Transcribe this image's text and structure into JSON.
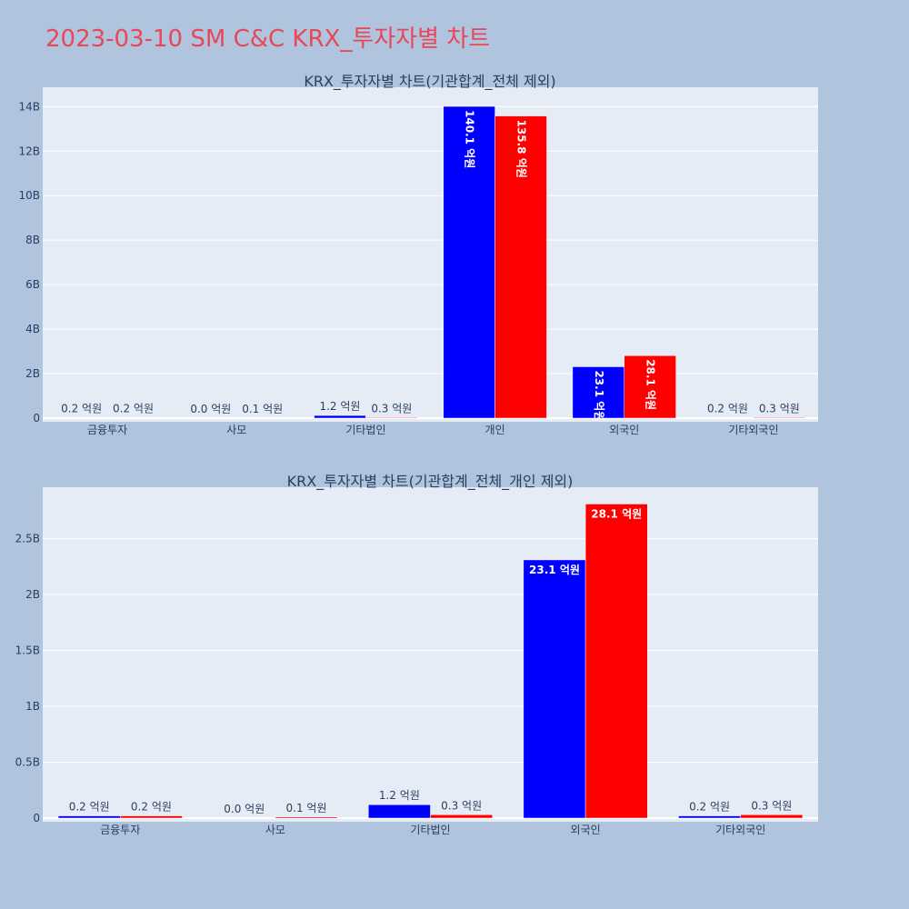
{
  "page": {
    "title": "2023-03-10 SM C&C KRX_투자자별 차트",
    "background": "#b0c4de",
    "title_color": "#e8475a"
  },
  "chart_data": [
    {
      "type": "bar",
      "title": "KRX_투자자별 차트(기관합계_전체 제외)",
      "categories": [
        "금융투자",
        "사모",
        "기타법인",
        "개인",
        "외국인",
        "기타외국인"
      ],
      "series": [
        {
          "color": "#0000ff",
          "values": [
            20000000,
            0,
            120000000,
            14010000000,
            2310000000,
            20000000
          ],
          "labels": [
            "0.2 억원",
            "0.0 억원",
            "1.2 억원",
            "140.1 억원",
            "23.1 억원",
            "0.2 억원"
          ]
        },
        {
          "color": "#ff0000",
          "values": [
            20000000,
            10000000,
            30000000,
            13580000000,
            2810000000,
            30000000
          ],
          "labels": [
            "0.2 억원",
            "0.1 억원",
            "0.3 억원",
            "135.8 억원",
            "28.1 억원",
            "0.3 억원"
          ]
        }
      ],
      "yticks": [
        0,
        2000000000,
        4000000000,
        6000000000,
        8000000000,
        10000000000,
        12000000000,
        14000000000
      ],
      "ytick_labels": [
        "0",
        "2B",
        "4B",
        "6B",
        "8B",
        "10B",
        "12B",
        "14B"
      ],
      "ylim": [
        0,
        14870000000
      ],
      "inside_label_orientation": "vertical",
      "grid": true,
      "plot_bg": "#e5ecf6"
    },
    {
      "type": "bar",
      "title": "KRX_투자자별 차트(기관합계_전체_개인 제외)",
      "categories": [
        "금융투자",
        "사모",
        "기타법인",
        "외국인",
        "기타외국인"
      ],
      "series": [
        {
          "color": "#0000ff",
          "values": [
            20000000,
            0,
            120000000,
            2310000000,
            20000000
          ],
          "labels": [
            "0.2 억원",
            "0.0 억원",
            "1.2 억원",
            "23.1 억원",
            "0.2 억원"
          ]
        },
        {
          "color": "#ff0000",
          "values": [
            20000000,
            10000000,
            30000000,
            2810000000,
            30000000
          ],
          "labels": [
            "0.2 억원",
            "0.1 억원",
            "0.3 억원",
            "28.1 억원",
            "0.3 억원"
          ]
        }
      ],
      "yticks": [
        0,
        500000000,
        1000000000,
        1500000000,
        2000000000,
        2500000000
      ],
      "ytick_labels": [
        "0",
        "0.5B",
        "1B",
        "1.5B",
        "2B",
        "2.5B"
      ],
      "ylim": [
        0,
        2960000000
      ],
      "inside_label_orientation": "horizontal",
      "grid": true,
      "plot_bg": "#e5ecf6"
    }
  ]
}
